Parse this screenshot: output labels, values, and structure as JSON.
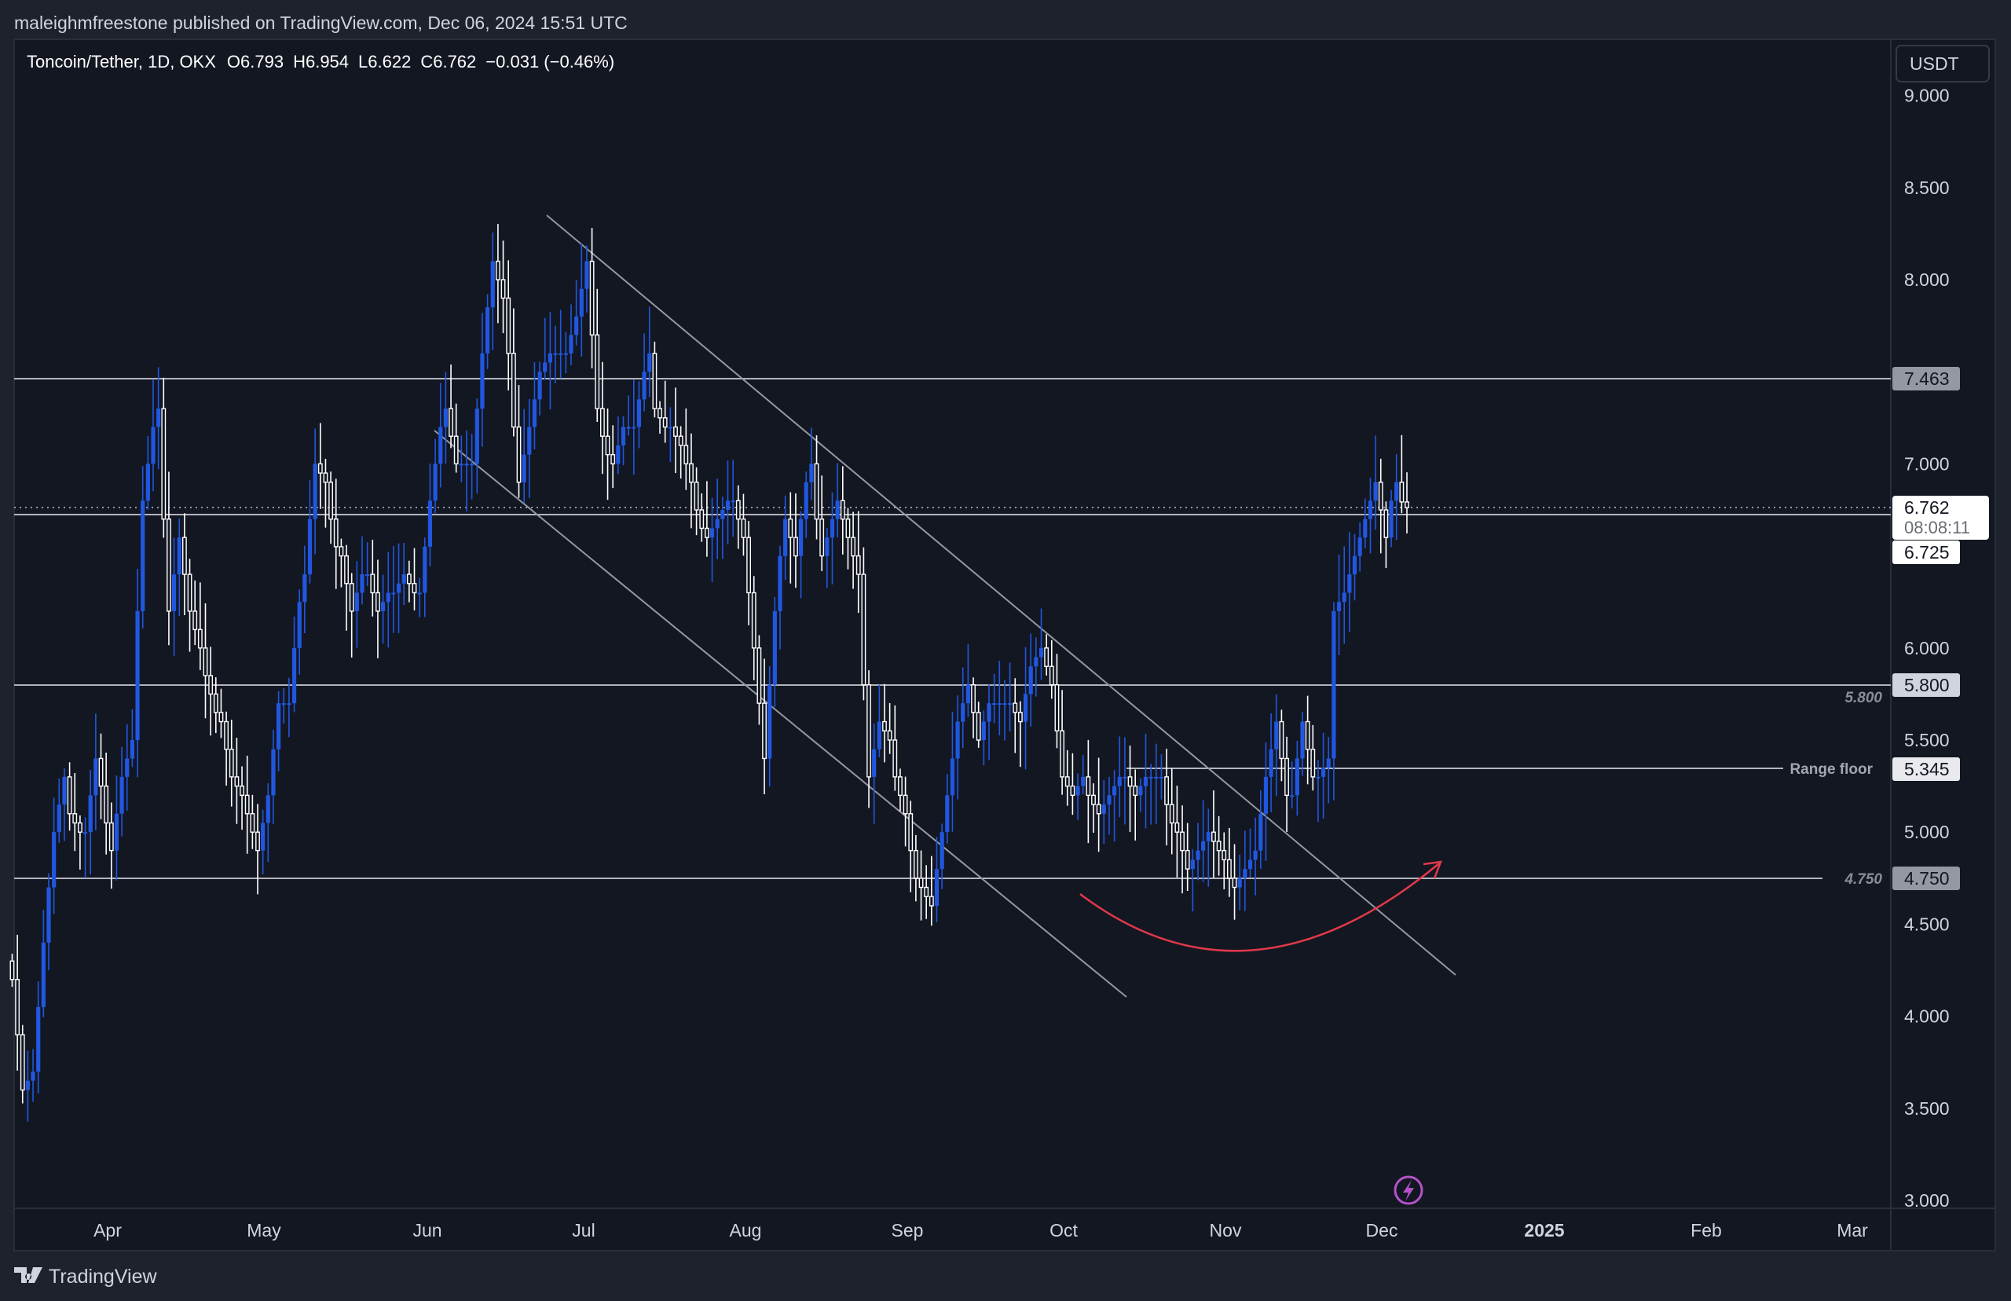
{
  "header": {
    "published": "maleighmfreestone published on TradingView.com, Dec 06, 2024 15:51 UTC"
  },
  "legend": {
    "symbol": "Toncoin/Tether, 1D, OKX",
    "open": "O6.793",
    "high": "H6.954",
    "low": "L6.622",
    "close": "C6.762",
    "change": "−0.031 (−0.46%)"
  },
  "price_axis": {
    "currency": "USDT",
    "ticks": [
      "9.000",
      "8.500",
      "8.000",
      "7.000",
      "6.000",
      "5.500",
      "5.000",
      "4.500",
      "4.000",
      "3.500",
      "3.000"
    ]
  },
  "time_axis": {
    "ticks": [
      "Apr",
      "May",
      "Jun",
      "Jul",
      "Aug",
      "Sep",
      "Oct",
      "Nov",
      "Dec",
      "2025",
      "Feb",
      "Mar"
    ]
  },
  "price_labels": {
    "level_7463": "7.463",
    "last_price": "6.762",
    "countdown": "08:08:11",
    "level_6725": "6.725",
    "level_5800": "5.800",
    "level_5345": "5.345",
    "level_4750": "4.750"
  },
  "annotations": {
    "level_5800_text": "5.800",
    "range_floor_text": "Range floor",
    "level_4750_text": "4.750"
  },
  "footer": {
    "brand": "TradingView"
  },
  "colors": {
    "up": "#2157e0",
    "down": "#ffffff",
    "background": "#131722",
    "frame": "#1e222d",
    "arc": "#e0394a",
    "event_icon": "#b453c9"
  },
  "icons": {
    "event": "lightning-icon",
    "logo": "tradingview-logo"
  },
  "chart_data": {
    "type": "candlestick",
    "first_date": "2024-03-15",
    "last_date": "2024-12-06",
    "ylim": [
      3.0,
      9.0
    ],
    "last_candle": {
      "open": 6.793,
      "high": 6.954,
      "low": 6.622,
      "close": 6.762
    },
    "closes": [
      4.2,
      3.9,
      3.6,
      3.65,
      3.7,
      4.05,
      4.4,
      4.7,
      5.0,
      5.15,
      5.3,
      5.1,
      5.05,
      5.0,
      5.0,
      5.2,
      5.4,
      5.25,
      5.05,
      4.9,
      5.1,
      5.3,
      5.4,
      5.5,
      6.2,
      6.8,
      7.0,
      7.2,
      7.3,
      6.7,
      6.2,
      6.4,
      6.6,
      6.4,
      6.2,
      6.1,
      6.0,
      5.85,
      5.75,
      5.65,
      5.6,
      5.45,
      5.3,
      5.25,
      5.2,
      5.1,
      5.0,
      4.9,
      5.05,
      5.2,
      5.45,
      5.7,
      5.7,
      5.7,
      6.0,
      6.25,
      6.4,
      6.7,
      7.0,
      6.95,
      6.9,
      6.7,
      6.55,
      6.5,
      6.35,
      6.2,
      6.3,
      6.4,
      6.4,
      6.3,
      6.2,
      6.25,
      6.3,
      6.3,
      6.35,
      6.4,
      6.35,
      6.3,
      6.3,
      6.55,
      6.8,
      7.0,
      7.2,
      7.3,
      7.15,
      7.0,
      7.0,
      7.0,
      7.0,
      7.3,
      7.6,
      7.85,
      8.1,
      8.0,
      7.9,
      7.6,
      7.2,
      6.9,
      7.05,
      7.2,
      7.35,
      7.5,
      7.55,
      7.6,
      7.6,
      7.6,
      7.6,
      7.7,
      7.8,
      7.95,
      8.1,
      7.7,
      7.3,
      7.15,
      7.05,
      7.0,
      7.1,
      7.2,
      7.2,
      7.2,
      7.35,
      7.5,
      7.6,
      7.3,
      7.25,
      7.2,
      7.2,
      7.15,
      7.1,
      7.0,
      6.9,
      6.75,
      6.65,
      6.6,
      6.65,
      6.7,
      6.75,
      6.8,
      6.8,
      6.7,
      6.6,
      6.3,
      6.0,
      5.7,
      5.4,
      5.8,
      6.2,
      6.5,
      6.7,
      6.6,
      6.5,
      6.7,
      6.9,
      7.0,
      6.7,
      6.5,
      6.6,
      6.7,
      6.8,
      6.7,
      6.6,
      6.5,
      6.4,
      5.8,
      5.3,
      5.45,
      5.6,
      5.55,
      5.5,
      5.3,
      5.2,
      5.1,
      4.9,
      4.75,
      4.7,
      4.65,
      4.6,
      4.8,
      5.0,
      5.2,
      5.4,
      5.6,
      5.7,
      5.8,
      5.65,
      5.5,
      5.6,
      5.7,
      5.7,
      5.7,
      5.7,
      5.7,
      5.65,
      5.6,
      5.75,
      5.9,
      5.95,
      6.0,
      5.9,
      5.8,
      5.55,
      5.3,
      5.25,
      5.2,
      5.25,
      5.3,
      5.2,
      5.15,
      5.1,
      5.15,
      5.2,
      5.25,
      5.3,
      5.3,
      5.25,
      5.2,
      5.25,
      5.3,
      5.3,
      5.3,
      5.3,
      5.15,
      5.05,
      5.0,
      4.9,
      4.8,
      4.85,
      4.9,
      4.95,
      5.0,
      4.95,
      4.9,
      4.85,
      4.75,
      4.7,
      4.75,
      4.8,
      4.85,
      4.9,
      5.1,
      5.3,
      5.45,
      5.6,
      5.4,
      5.2,
      5.2,
      5.4,
      5.6,
      5.45,
      5.3,
      5.3,
      5.35,
      5.4,
      6.2,
      6.25,
      6.3,
      6.4,
      6.5,
      6.6,
      6.7,
      6.8,
      6.9,
      6.75,
      6.6,
      6.8,
      6.9,
      6.793,
      6.762
    ],
    "horizontal_levels": [
      7.463,
      6.725,
      5.8,
      5.345,
      4.75
    ]
  }
}
